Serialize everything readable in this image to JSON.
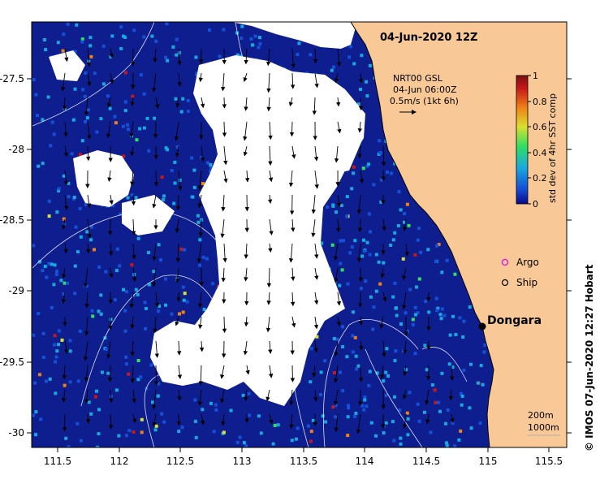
{
  "title": "04-Jun-2020 12Z",
  "current_legend": {
    "source": "NRT00 GSL",
    "time": "04-Jun 06:00Z",
    "scale": "0.5m/s (1kt 6h)"
  },
  "colorbar": {
    "label": "std dev of 4hr SST comp",
    "ticks": [
      "0",
      "0.2",
      "0.4",
      "0.6",
      "0.8",
      "1"
    ],
    "colors": [
      "#0a0a8c",
      "#1550d8",
      "#18a8e0",
      "#30e060",
      "#d8e030",
      "#f08018",
      "#c81818",
      "#7a1010"
    ]
  },
  "symbol_legend": {
    "argo": "Argo",
    "ship": "Ship"
  },
  "place_label": "Dongara",
  "contour_legend": {
    "a": "200m",
    "b": "1000m"
  },
  "credit": "© IMOS 07-Jun-2020 12:27 Hobart",
  "axes": {
    "x_ticks": [
      "111.5",
      "112",
      "112.5",
      "113",
      "113.5",
      "114",
      "114.5",
      "115",
      "115.5"
    ],
    "y_ticks": [
      "-27.5",
      "-28",
      "-28.5",
      "-29",
      "-29.5",
      "-30"
    ]
  },
  "colors": {
    "land": "#f8c896",
    "cloud": "#ffffff",
    "ocean": "#0e1e8e",
    "frame": "#000000"
  }
}
